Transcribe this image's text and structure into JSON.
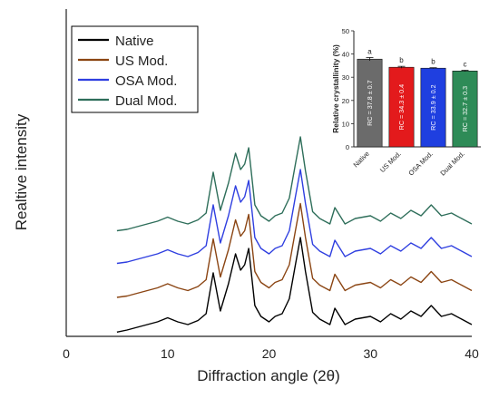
{
  "chart_data": [
    {
      "type": "line",
      "xlabel": "Diffraction angle (2θ)",
      "ylabel": "Realtive intensity",
      "xlim": [
        0,
        40
      ],
      "xticks": [
        0,
        10,
        20,
        30,
        40
      ],
      "grid": false,
      "legend_position": "top-left",
      "series": [
        {
          "name": "Native",
          "color": "#000000",
          "x": [
            5,
            6,
            7,
            8,
            9,
            10,
            11,
            12,
            13,
            13.8,
            14.5,
            15.2,
            16,
            16.7,
            17.2,
            17.6,
            18,
            18.6,
            19.2,
            20,
            20.6,
            21.3,
            22,
            22.6,
            23.1,
            23.6,
            24.3,
            25,
            26,
            26.5,
            27.5,
            28.5,
            30,
            31,
            32,
            33,
            34,
            35,
            36,
            37,
            38,
            39,
            40
          ],
          "y": [
            0.5,
            2,
            4,
            6,
            8,
            11,
            8,
            6,
            9,
            14,
            44,
            16,
            36,
            58,
            46,
            50,
            62,
            20,
            12,
            8,
            12,
            14,
            25,
            50,
            70,
            45,
            15,
            10,
            6,
            18,
            6,
            10,
            12,
            8,
            14,
            10,
            16,
            12,
            20,
            12,
            14,
            10,
            6
          ]
        },
        {
          "name": "US Mod.",
          "color": "#8b4513",
          "x": [
            5,
            6,
            7,
            8,
            9,
            10,
            11,
            12,
            13,
            13.8,
            14.5,
            15.2,
            16,
            16.7,
            17.2,
            17.6,
            18,
            18.6,
            19.2,
            20,
            20.6,
            21.3,
            22,
            22.6,
            23.1,
            23.6,
            24.3,
            25,
            26,
            26.5,
            27.5,
            28.5,
            30,
            31,
            32,
            33,
            34,
            35,
            36,
            37,
            38,
            39,
            40
          ],
          "y": [
            26,
            27,
            29,
            31,
            33,
            36,
            33,
            31,
            34,
            39,
            69,
            41,
            61,
            83,
            71,
            75,
            87,
            45,
            37,
            33,
            37,
            39,
            50,
            75,
            95,
            70,
            40,
            35,
            31,
            43,
            31,
            35,
            37,
            33,
            39,
            35,
            41,
            37,
            45,
            37,
            39,
            35,
            31
          ]
        },
        {
          "name": "OSA Mod.",
          "color": "#2f3fe0",
          "x": [
            5,
            6,
            7,
            8,
            9,
            10,
            11,
            12,
            13,
            13.8,
            14.5,
            15.2,
            16,
            16.7,
            17.2,
            17.6,
            18,
            18.6,
            19.2,
            20,
            20.6,
            21.3,
            22,
            22.6,
            23.1,
            23.6,
            24.3,
            25,
            26,
            26.5,
            27.5,
            28.5,
            30,
            31,
            32,
            33,
            34,
            35,
            36,
            37,
            38,
            39,
            40
          ],
          "y": [
            51,
            52,
            54,
            56,
            58,
            61,
            58,
            56,
            59,
            64,
            94,
            66,
            86,
            108,
            96,
            100,
            112,
            70,
            62,
            58,
            62,
            64,
            75,
            100,
            120,
            95,
            65,
            60,
            56,
            68,
            56,
            60,
            62,
            58,
            64,
            60,
            66,
            62,
            70,
            62,
            64,
            60,
            56
          ]
        },
        {
          "name": "Dual Mod.",
          "color": "#2e6e5a",
          "x": [
            5,
            6,
            7,
            8,
            9,
            10,
            11,
            12,
            13,
            13.8,
            14.5,
            15.2,
            16,
            16.7,
            17.2,
            17.6,
            18,
            18.6,
            19.2,
            20,
            20.6,
            21.3,
            22,
            22.6,
            23.1,
            23.6,
            24.3,
            25,
            26,
            26.5,
            27.5,
            28.5,
            30,
            31,
            32,
            33,
            34,
            35,
            36,
            37,
            38,
            39,
            40
          ],
          "y": [
            75,
            76,
            78,
            80,
            82,
            85,
            82,
            80,
            83,
            88,
            118,
            90,
            110,
            132,
            120,
            124,
            136,
            94,
            86,
            82,
            86,
            88,
            99,
            124,
            144,
            119,
            89,
            84,
            80,
            92,
            80,
            84,
            86,
            82,
            88,
            84,
            90,
            86,
            94,
            86,
            88,
            84,
            80
          ]
        }
      ]
    },
    {
      "type": "bar",
      "ylabel": "Relative crystallinity (%)",
      "ylim": [
        0,
        50
      ],
      "yticks": [
        0,
        10,
        20,
        30,
        40,
        50
      ],
      "categories": [
        "Native",
        "US Mod.",
        "OSA Mod.",
        "Dual Mod."
      ],
      "values": [
        37.8,
        34.3,
        33.9,
        32.7
      ],
      "errors": [
        0.7,
        0.4,
        0.2,
        0.3
      ],
      "bar_labels": [
        "RC = 37.8 ± 0.7",
        "RC = 34.3 ± 0.4",
        "RC = 33.9 ± 0.2",
        "RC = 32.7 ± 0.3"
      ],
      "significance_letters": [
        "a",
        "b",
        "b",
        "c"
      ],
      "colors": [
        "#6b6b6b",
        "#e31a1c",
        "#1f3fe0",
        "#2e8b57"
      ]
    }
  ]
}
